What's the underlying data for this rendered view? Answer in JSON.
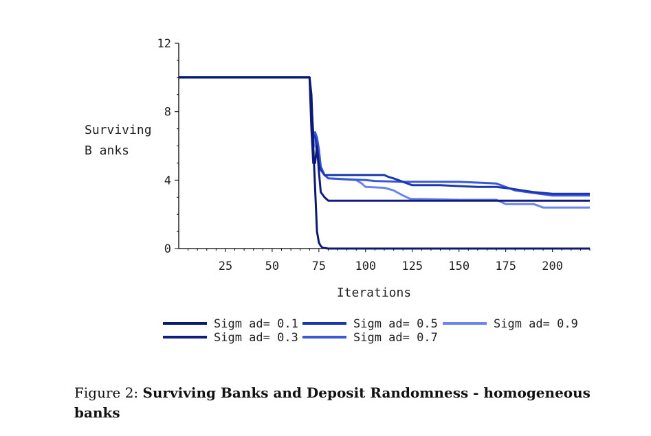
{
  "chart_data": {
    "type": "line",
    "ylabel_lines": [
      "Surviving",
      "B anks"
    ],
    "xlabel": "Iterations",
    "xlim": [
      0,
      220
    ],
    "ylim": [
      0,
      12
    ],
    "xticks": [
      25,
      50,
      75,
      100,
      125,
      150,
      175,
      200
    ],
    "yticks": [
      0,
      4,
      8,
      12
    ],
    "grid": false,
    "legend_position": "bottom",
    "series": [
      {
        "name": "Sigm ad= 0.1",
        "color": "#0a1a6e",
        "x": [
          0,
          70,
          71,
          72,
          73,
          74,
          75,
          76,
          77,
          80,
          220
        ],
        "y": [
          10,
          10,
          9.0,
          6.0,
          3.5,
          1.0,
          0.35,
          0.15,
          0.05,
          0,
          0
        ]
      },
      {
        "name": "Sigm ad= 0.3",
        "color": "#101c80",
        "x": [
          0,
          70,
          71,
          72,
          73,
          74,
          75,
          76,
          78,
          80,
          220
        ],
        "y": [
          10,
          10,
          7.0,
          5.0,
          5.0,
          6.0,
          4.5,
          3.3,
          3.0,
          2.8,
          2.8
        ]
      },
      {
        "name": "Sigm ad= 0.5",
        "color": "#1a36b0",
        "x": [
          0,
          70,
          71,
          72,
          73,
          74,
          75,
          76,
          78,
          80,
          110,
          112,
          115,
          125,
          140,
          160,
          170,
          178,
          190,
          200,
          220
        ],
        "y": [
          10,
          10,
          8.5,
          6.7,
          6.5,
          6.0,
          5.0,
          4.6,
          4.3,
          4.3,
          4.3,
          4.2,
          4.1,
          3.7,
          3.7,
          3.6,
          3.6,
          3.5,
          3.3,
          3.2,
          3.2
        ]
      },
      {
        "name": "Sigm ad= 0.7",
        "color": "#3a58d6",
        "x": [
          0,
          70,
          71,
          72,
          73,
          74,
          75,
          76,
          78,
          80,
          100,
          105,
          120,
          150,
          170,
          175,
          180,
          200,
          220
        ],
        "y": [
          10,
          10,
          8.3,
          6.7,
          6.8,
          6.5,
          5.8,
          4.8,
          4.3,
          4.1,
          4.0,
          3.95,
          3.9,
          3.9,
          3.8,
          3.6,
          3.4,
          3.1,
          3.1
        ]
      },
      {
        "name": "Sigm ad= 0.9",
        "color": "#6a85ec",
        "x": [
          0,
          70,
          71,
          72,
          73,
          74,
          75,
          76,
          78,
          80,
          95,
          98,
          100,
          110,
          115,
          120,
          124,
          130,
          150,
          170,
          175,
          190,
          195,
          220
        ],
        "y": [
          10,
          10,
          8.0,
          6.4,
          6.0,
          5.8,
          5.2,
          4.7,
          4.3,
          4.1,
          4.0,
          3.8,
          3.6,
          3.55,
          3.4,
          3.1,
          2.9,
          2.9,
          2.85,
          2.85,
          2.6,
          2.6,
          2.4,
          2.4
        ]
      }
    ]
  },
  "caption": {
    "prefix": "Figure 2: ",
    "title": "Surviving Banks and Deposit Randomness - homogeneous banks"
  }
}
